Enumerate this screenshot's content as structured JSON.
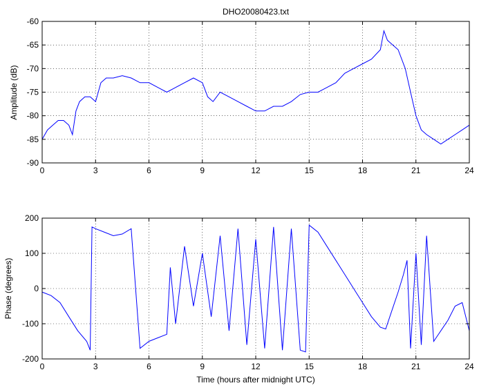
{
  "chart_data": [
    {
      "type": "line",
      "title": "DHO20080423.txt",
      "xlabel": "",
      "ylabel": "Amplitude (dB)",
      "xlim": [
        0,
        24
      ],
      "ylim": [
        -90,
        -60
      ],
      "xticks": [
        0,
        3,
        6,
        9,
        12,
        15,
        18,
        21,
        24
      ],
      "yticks": [
        -90,
        -85,
        -80,
        -75,
        -70,
        -65,
        -60
      ],
      "grid": true,
      "color": "#0000ff",
      "series": [
        {
          "x": [
            0,
            0.3,
            0.6,
            0.9,
            1.2,
            1.5,
            1.7,
            1.9,
            2.1,
            2.4,
            2.7,
            3.0,
            3.3,
            3.6,
            4.0,
            4.5,
            5.0,
            5.5,
            6.0,
            6.5,
            7.0,
            7.5,
            8.0,
            8.5,
            9.0,
            9.3,
            9.6,
            10.0,
            10.5,
            11.0,
            11.5,
            12.0,
            12.5,
            13.0,
            13.5,
            14.0,
            14.5,
            15.0,
            15.5,
            16.0,
            16.5,
            17.0,
            17.5,
            18.0,
            18.5,
            19.0,
            19.2,
            19.4,
            19.7,
            20.0,
            20.4,
            20.7,
            21.0,
            21.3,
            21.6,
            22.0,
            22.4,
            22.8,
            23.2,
            23.6,
            24.0
          ],
          "y": [
            -85,
            -83,
            -82,
            -81,
            -81,
            -82,
            -84,
            -79,
            -77,
            -76,
            -76,
            -77,
            -73,
            -72,
            -72,
            -71.5,
            -72,
            -73,
            -73,
            -74,
            -75,
            -74,
            -73,
            -72,
            -73,
            -76,
            -77,
            -75,
            -76,
            -77,
            -78,
            -79,
            -79,
            -78,
            -78,
            -77,
            -75.5,
            -75,
            -75,
            -74,
            -73,
            -71,
            -70,
            -69,
            -68,
            -66,
            -62,
            -64,
            -65,
            -66,
            -70,
            -75,
            -80,
            -83,
            -84,
            -85,
            -86,
            -85,
            -84,
            -83,
            -82
          ]
        }
      ]
    },
    {
      "type": "line",
      "title": "",
      "xlabel": "Time (hours after midnight UTC)",
      "ylabel": "Phase (degrees)",
      "xlim": [
        0,
        24
      ],
      "ylim": [
        -200,
        200
      ],
      "xticks": [
        0,
        3,
        6,
        9,
        12,
        15,
        18,
        21,
        24
      ],
      "yticks": [
        -200,
        -100,
        0,
        100,
        200
      ],
      "grid": true,
      "color": "#0000ff",
      "series": [
        {
          "x": [
            0,
            0.5,
            1.0,
            1.5,
            2.0,
            2.5,
            2.7,
            2.8,
            3.0,
            3.5,
            4.0,
            4.5,
            5.0,
            5.5,
            6.0,
            6.5,
            7.0,
            7.2,
            7.5,
            8.0,
            8.5,
            9.0,
            9.5,
            10.0,
            10.5,
            11.0,
            11.5,
            12.0,
            12.5,
            13.0,
            13.5,
            14.0,
            14.5,
            14.8,
            15.0,
            15.5,
            16.0,
            16.5,
            17.0,
            17.5,
            18.0,
            18.5,
            19.0,
            19.3,
            19.6,
            20.0,
            20.3,
            20.5,
            20.7,
            21.0,
            21.3,
            21.6,
            22.0,
            22.4,
            22.8,
            23.2,
            23.6,
            24.0
          ],
          "y": [
            -10,
            -20,
            -40,
            -80,
            -120,
            -150,
            -175,
            175,
            170,
            160,
            150,
            155,
            170,
            -170,
            -150,
            -140,
            -130,
            60,
            -100,
            120,
            -50,
            100,
            -80,
            150,
            -120,
            170,
            -160,
            140,
            -170,
            175,
            -175,
            170,
            -175,
            -180,
            180,
            160,
            120,
            80,
            40,
            0,
            -40,
            -80,
            -110,
            -115,
            -70,
            -10,
            40,
            80,
            -170,
            100,
            -160,
            150,
            -150,
            -120,
            -90,
            -50,
            -40,
            -120
          ]
        }
      ]
    }
  ]
}
